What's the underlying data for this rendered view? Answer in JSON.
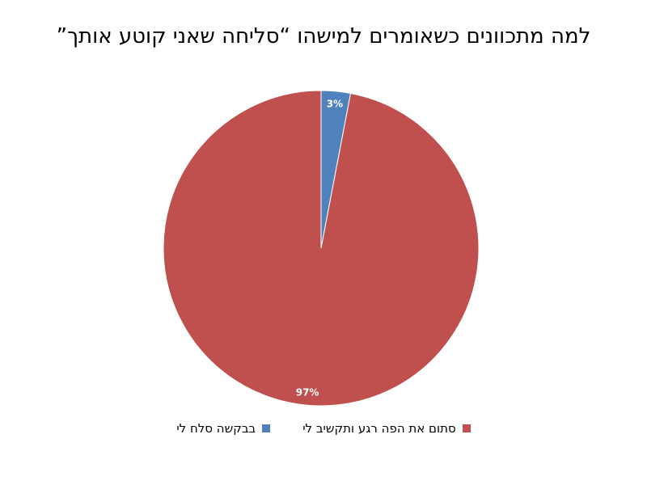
{
  "chart_data": {
    "type": "pie",
    "title": "למה מתכוונים כשאומרים למישהו “סליחה שאני קוטע אותך”",
    "slices": [
      {
        "name": "בבקשה סלח לי",
        "value": 3,
        "label": "3%",
        "color": "#4f81bd"
      },
      {
        "name": "סתום את הפה רגע ותקשיב לי",
        "value": 97,
        "label": "97%",
        "color": "#c0504d"
      }
    ],
    "legend_position": "bottom"
  }
}
